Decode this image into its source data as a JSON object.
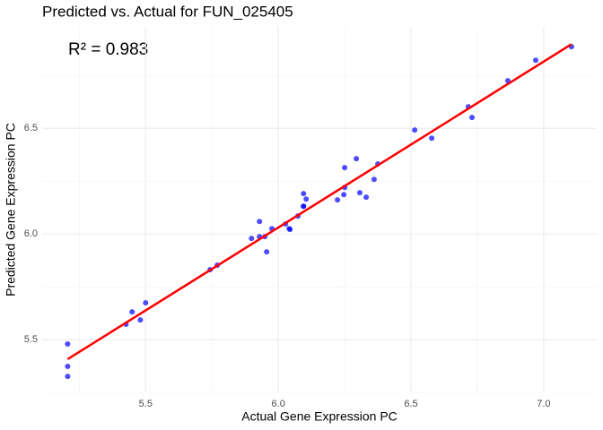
{
  "chart_data": {
    "type": "scatter",
    "title": "Predicted vs. Actual for FUN_025405",
    "annotation": "R² = 0.983",
    "xlabel": "Actual Gene Expression PC",
    "ylabel": "Predicted Gene Expression PC",
    "xlim": [
      5.11,
      7.2
    ],
    "ylim": [
      5.25,
      6.98
    ],
    "xticks": [
      5.5,
      6.0,
      6.5,
      7.0
    ],
    "yticks": [
      5.5,
      6.0,
      6.5
    ],
    "xminor": [
      5.25,
      5.75,
      6.25,
      6.75
    ],
    "yminor": [
      5.25,
      5.75,
      6.25,
      6.75
    ],
    "grid": true,
    "series": [
      {
        "name": "points",
        "color": "#0000ff",
        "x": [
          5.206,
          5.206,
          5.206,
          5.426,
          5.449,
          5.48,
          5.5,
          5.743,
          5.77,
          5.899,
          5.929,
          5.929,
          5.949,
          5.956,
          5.976,
          6.027,
          6.041,
          6.044,
          6.074,
          6.095,
          6.095,
          6.095,
          6.105,
          6.223,
          6.247,
          6.25,
          6.25,
          6.294,
          6.307,
          6.331,
          6.361,
          6.375,
          6.514,
          6.578,
          6.716,
          6.73,
          6.865,
          6.97,
          7.105
        ],
        "values": [
          5.479,
          5.373,
          5.326,
          5.572,
          5.631,
          5.593,
          5.674,
          5.831,
          5.852,
          5.979,
          5.987,
          6.059,
          5.987,
          5.915,
          6.025,
          6.047,
          6.025,
          6.021,
          6.085,
          6.131,
          6.131,
          6.191,
          6.165,
          6.161,
          6.186,
          6.22,
          6.314,
          6.356,
          6.195,
          6.174,
          6.258,
          6.331,
          6.492,
          6.453,
          6.602,
          6.551,
          6.725,
          6.822,
          6.886
        ]
      }
    ],
    "fit": {
      "color": "#ff0000",
      "x": [
        5.206,
        7.105
      ],
      "values": [
        5.407,
        6.898
      ]
    }
  }
}
